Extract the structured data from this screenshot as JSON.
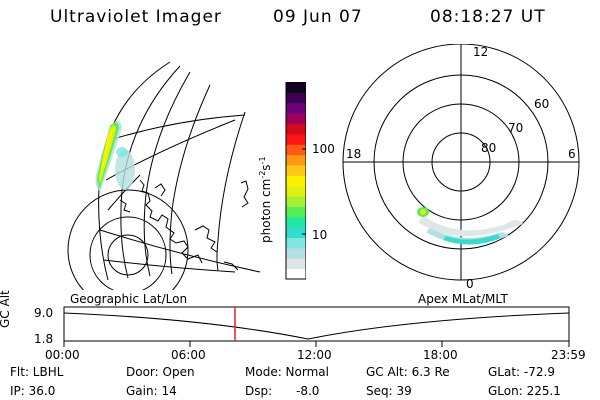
{
  "header": {
    "title": "Ultraviolet Imager",
    "date": "09 Jun 07",
    "time": "08:18:27 UT"
  },
  "colorbar": {
    "unit_label": "photon cm",
    "unit_exp1": "-2",
    "unit_mid": "s",
    "unit_exp2": "-1",
    "ticks": [
      "100",
      "10"
    ],
    "colors": [
      "#ffffff",
      "#dde7e7",
      "#b5dfe0",
      "#7fe6e0",
      "#32dcd0",
      "#22e6a5",
      "#55ef55",
      "#a5f032",
      "#e0ef12",
      "#fff000",
      "#ffc814",
      "#ff9614",
      "#ff5a14",
      "#ff1414",
      "#d20a1e",
      "#a0005a",
      "#6e0078",
      "#3c0050",
      "#14001e"
    ]
  },
  "polar": {
    "labels": [
      "12",
      "60",
      "70",
      "80",
      "18",
      "6",
      "0"
    ]
  },
  "timeline": {
    "left_label": "Geographic Lat/Lon",
    "right_label": "Apex MLat/MLT",
    "ylabel": "GC Alt",
    "ymax": "9.0",
    "ymin": "1.8",
    "xticks": [
      "00:00",
      "06:00",
      "12:00",
      "18:00",
      "23:59"
    ],
    "current_marker_color": "#e02020"
  },
  "info": {
    "filter": "Flt: LBHL",
    "door": "Door: Open",
    "mode": "Mode: Normal",
    "gcalt": "GC Alt: 6.3 Re",
    "glat": "GLat: -72.9",
    "ip": "IP: 36.0",
    "gain": "Gain: 14",
    "dsp": "Dsp:",
    "dsp_val": "-8.0",
    "seq": "Seq: 39",
    "glon": "GLon: 225.1"
  }
}
